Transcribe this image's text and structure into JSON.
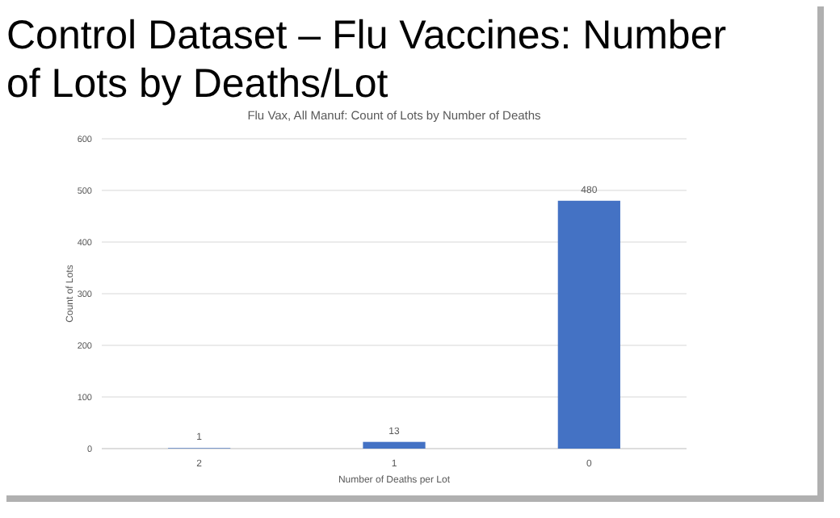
{
  "chart_data": {
    "type": "bar",
    "title": "Control Dataset – Flu Vaccines: Number of Lots by Deaths/Lot",
    "subtitle": "Flu Vax, All Manuf: Count of Lots by Number of Deaths",
    "xlabel": "Number of Deaths per Lot",
    "ylabel": "Count of Lots",
    "categories": [
      "2",
      "1",
      "0"
    ],
    "values": [
      1,
      13,
      480
    ],
    "color": "#4472c4",
    "ylim": [
      0,
      600
    ],
    "yticks": [
      0,
      100,
      200,
      300,
      400,
      500,
      600
    ],
    "grid": "y",
    "data_labels": true
  }
}
